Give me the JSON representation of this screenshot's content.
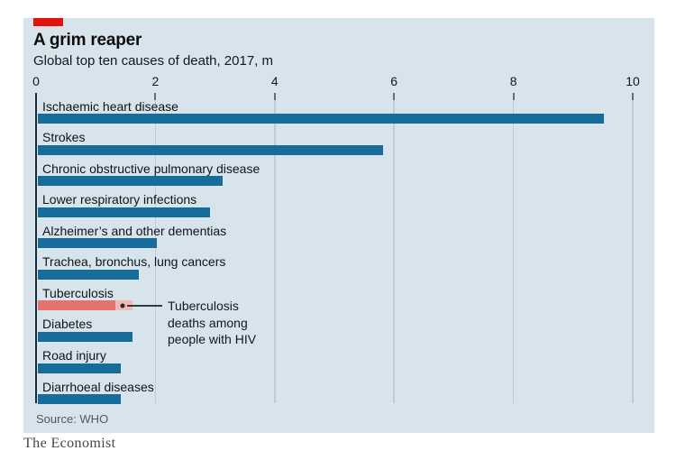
{
  "header": {
    "title": "A grim reaper",
    "subtitle": "Global top ten causes of death, 2017, m"
  },
  "chart_data": {
    "type": "bar",
    "orientation": "horizontal",
    "title": "A grim reaper",
    "subtitle": "Global top ten causes of death, 2017, m",
    "unit": "m",
    "xlim": [
      0,
      10
    ],
    "x_ticks": [
      "0",
      "2",
      "4",
      "6",
      "8",
      "10"
    ],
    "grid": true,
    "legend": false,
    "categories": [
      "Ischaemic heart disease",
      "Strokes",
      "Chronic obstructive pulmonary disease",
      "Lower respiratory infections",
      "Alzheimer’s and other dementias",
      "Trachea, bronchus, lung cancers",
      "Tuberculosis",
      "Diabetes",
      "Road injury",
      "Diarrhoeal diseases"
    ],
    "values": [
      9.5,
      5.8,
      3.1,
      2.9,
      2.0,
      1.7,
      1.6,
      1.6,
      1.4,
      1.4
    ],
    "highlight": {
      "category": "Tuberculosis",
      "segment_label": "Tuberculosis deaths among people with HIV",
      "segment_value": 0.3
    }
  },
  "annotation": {
    "text": "Tuberculosis\ndeaths among\npeople with HIV"
  },
  "source": "Source: WHO",
  "brand": "The Economist",
  "colors": {
    "panel_bg": "#d7e4ec",
    "bar_blue": "#176c9c",
    "tb_salmon": "#e2736e",
    "tb_light_pink": "#f2b9b2",
    "tag_red": "#e3120b",
    "gridline": "#bccdd7",
    "spine": "#1c2b35"
  }
}
